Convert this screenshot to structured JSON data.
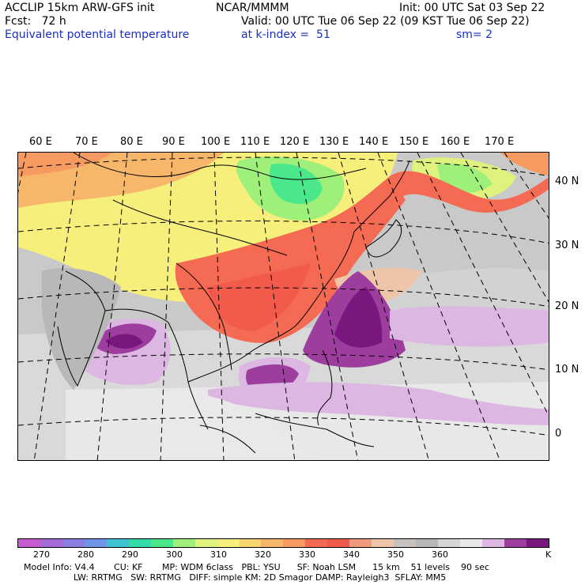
{
  "header": {
    "model": "ACCLIP 15km ARW-GFS init",
    "org": "NCAR/MMMM",
    "init": "Init: 00 UTC Sat 03 Sep 22",
    "fcst": "Fcst:   72 h",
    "valid": "Valid: 00 UTC Tue 06 Sep 22 (09 KST Tue 06 Sep 22)",
    "field": "Equivalent potential temperature",
    "level": "at k-index =  51",
    "smooth": "sm= 2"
  },
  "lon_labels": [
    "60 E",
    "70 E",
    "80 E",
    "90 E",
    "100 E",
    "110 E",
    "120 E",
    "130 E",
    "140 E",
    "150 E",
    "160 E",
    "170 E"
  ],
  "lat_labels": [
    "40 N",
    "30 N",
    "20 N",
    "10 N",
    "0"
  ],
  "colorbar": {
    "colors": [
      "#c65bd0",
      "#a66ad8",
      "#8a7ee0",
      "#6f95e6",
      "#3fc3d3",
      "#33dca8",
      "#4ae88a",
      "#9ef07a",
      "#dff27d",
      "#f6ef7b",
      "#f8d46e",
      "#f7b76a",
      "#f79a61",
      "#f46a52",
      "#f25b4c",
      "#f19a7f",
      "#efc5a9",
      "#c8c2be",
      "#b8b8b8",
      "#d6d6d6",
      "#e9e9e9",
      "#dcb7e2",
      "#9d3e9f",
      "#7a177f"
    ],
    "tick_labels": [
      "270",
      "280",
      "290",
      "300",
      "310",
      "320",
      "330",
      "340",
      "350",
      "360"
    ],
    "units": "K"
  },
  "footer": {
    "line1": "Model Info: V4.4       CU: KF       MP: WDM 6class   PBL: YSU      SF: Noah LSM      15 km    51 levels    90 sec",
    "line2": "                  LW: RRTMG   SW: RRTMG   DIFF: simple KM: 2D Smagor DAMP: Rayleigh3  SFLAY: MM5"
  }
}
